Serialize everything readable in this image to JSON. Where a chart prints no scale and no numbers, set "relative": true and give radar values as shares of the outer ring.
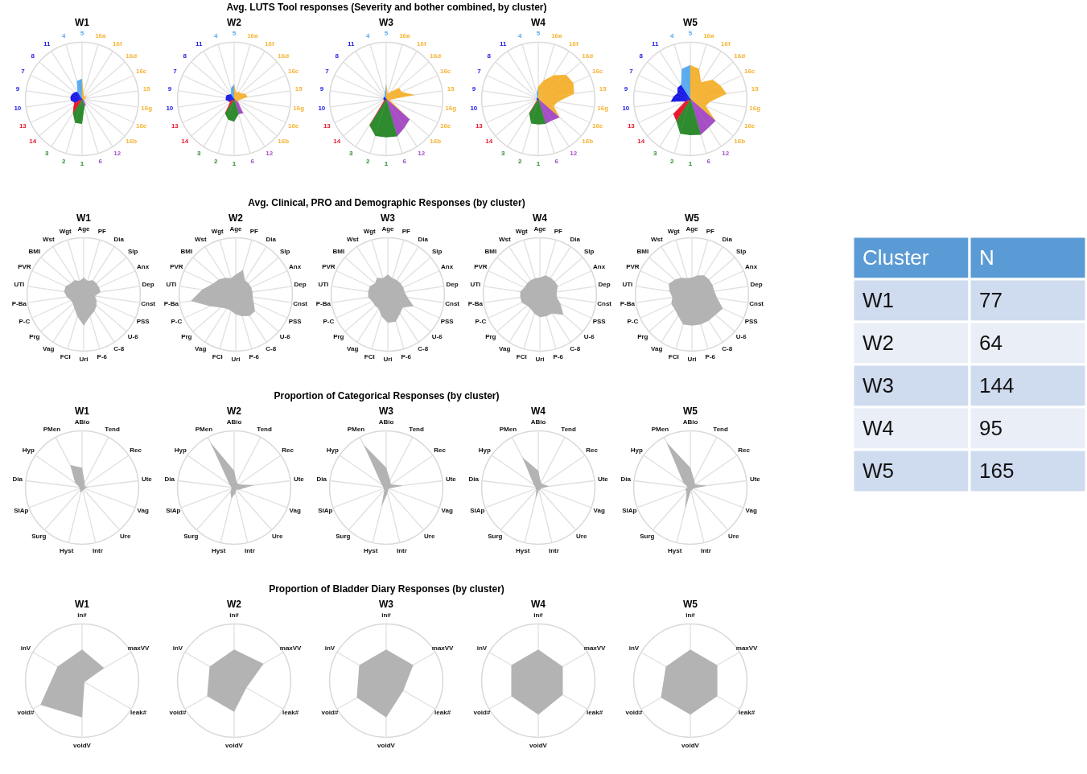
{
  "chart_data": [
    {
      "type": "radar",
      "title": "W1",
      "annotations": [
        "Avg. LUTS Tool responses (Severity and bother combined, by cluster)"
      ],
      "relative": true,
      "grid": true,
      "categories": [
        "5",
        "16a",
        "16f",
        "16d",
        "16c",
        "15",
        "16g",
        "16e",
        "16b",
        "12",
        "6",
        "1",
        "2",
        "3",
        "14",
        "13",
        "10",
        "9",
        "7",
        "8",
        "11",
        "4"
      ],
      "colors": [
        "#5aabf0",
        "#f5b335",
        "#f5b335",
        "#f5b335",
        "#f5b335",
        "#f5b335",
        "#f5b335",
        "#f5b335",
        "#f5b335",
        "#a64fc4",
        "#a64fc4",
        "#2e8b2e",
        "#2e8b2e",
        "#2e8b2e",
        "#e8192c",
        "#e8192c",
        "#1a1ae6",
        "#1a1ae6",
        "#1a1ae6",
        "#1a1ae6",
        "#1a1ae6",
        "#5aabf0"
      ],
      "series": [
        {
          "values": [
            0.36,
            0.1,
            0.06,
            0.06,
            0.1,
            0.05,
            0.04,
            0.04,
            0.05,
            0.12,
            0.15,
            0.44,
            0.44,
            0.3,
            0.2,
            0.15,
            0.2,
            0.21,
            0.2,
            0.18,
            0.15,
            0.33
          ]
        }
      ]
    },
    {
      "type": "radar",
      "title": "W2",
      "relative": true,
      "grid": true,
      "categories": [
        "5",
        "16a",
        "16f",
        "16d",
        "16c",
        "15",
        "16g",
        "16e",
        "16b",
        "12",
        "6",
        "1",
        "2",
        "3",
        "14",
        "13",
        "10",
        "9",
        "7",
        "8",
        "11",
        "4"
      ],
      "colors": [
        "#5aabf0",
        "#f5b335",
        "#f5b335",
        "#f5b335",
        "#f5b335",
        "#f5b335",
        "#f5b335",
        "#f5b335",
        "#f5b335",
        "#a64fc4",
        "#a64fc4",
        "#2e8b2e",
        "#2e8b2e",
        "#2e8b2e",
        "#e8192c",
        "#e8192c",
        "#1a1ae6",
        "#1a1ae6",
        "#1a1ae6",
        "#1a1ae6",
        "#1a1ae6",
        "#5aabf0"
      ],
      "series": [
        {
          "values": [
            0.26,
            0.12,
            0.15,
            0.15,
            0.22,
            0.24,
            0.1,
            0.08,
            0.1,
            0.3,
            0.28,
            0.4,
            0.38,
            0.3,
            0.1,
            0.1,
            0.15,
            0.15,
            0.15,
            0.12,
            0.1,
            0.2
          ]
        }
      ]
    },
    {
      "type": "radar",
      "title": "W3",
      "relative": true,
      "grid": true,
      "categories": [
        "5",
        "16a",
        "16f",
        "16d",
        "16c",
        "15",
        "16g",
        "16e",
        "16b",
        "12",
        "6",
        "1",
        "2",
        "3",
        "14",
        "13",
        "10",
        "9",
        "7",
        "8",
        "11",
        "4"
      ],
      "colors": [
        "#5aabf0",
        "#f5b335",
        "#f5b335",
        "#f5b335",
        "#f5b335",
        "#f5b335",
        "#f5b335",
        "#f5b335",
        "#f5b335",
        "#a64fc4",
        "#a64fc4",
        "#2e8b2e",
        "#2e8b2e",
        "#2e8b2e",
        "#e8192c",
        "#e8192c",
        "#1a1ae6",
        "#1a1ae6",
        "#1a1ae6",
        "#1a1ae6",
        "#1a1ae6",
        "#5aabf0"
      ],
      "series": [
        {
          "values": [
            0.27,
            0.1,
            0.15,
            0.3,
            0.3,
            0.51,
            0.08,
            0.08,
            0.55,
            0.6,
            0.69,
            0.68,
            0.68,
            0.55,
            0.05,
            0.05,
            0.05,
            0.05,
            0.05,
            0.05,
            0.05,
            0.1
          ]
        }
      ]
    },
    {
      "type": "radar",
      "title": "W4",
      "relative": true,
      "grid": true,
      "categories": [
        "5",
        "16a",
        "16f",
        "16d",
        "16c",
        "15",
        "16g",
        "16e",
        "16b",
        "12",
        "6",
        "1",
        "2",
        "3",
        "14",
        "13",
        "10",
        "9",
        "7",
        "8",
        "11",
        "4"
      ],
      "colors": [
        "#5aabf0",
        "#f5b335",
        "#f5b335",
        "#f5b335",
        "#f5b335",
        "#f5b335",
        "#f5b335",
        "#f5b335",
        "#f5b335",
        "#a64fc4",
        "#a64fc4",
        "#2e8b2e",
        "#2e8b2e",
        "#2e8b2e",
        "#e8192c",
        "#e8192c",
        "#1a1ae6",
        "#1a1ae6",
        "#1a1ae6",
        "#1a1ae6",
        "#1a1ae6",
        "#5aabf0"
      ],
      "series": [
        {
          "values": [
            0.22,
            0.34,
            0.5,
            0.65,
            0.68,
            0.64,
            0.35,
            0.3,
            0.5,
            0.45,
            0.46,
            0.45,
            0.45,
            0.3,
            0.03,
            0.03,
            0.03,
            0.03,
            0.03,
            0.03,
            0.03,
            0.1
          ]
        }
      ]
    },
    {
      "type": "radar",
      "title": "W5",
      "relative": true,
      "grid": true,
      "categories": [
        "5",
        "16a",
        "16f",
        "16d",
        "16c",
        "15",
        "16g",
        "16e",
        "16b",
        "12",
        "6",
        "1",
        "2",
        "3",
        "14",
        "13",
        "10",
        "9",
        "7",
        "8",
        "11",
        "4"
      ],
      "colors": [
        "#5aabf0",
        "#f5b335",
        "#f5b335",
        "#f5b335",
        "#f5b335",
        "#f5b335",
        "#f5b335",
        "#f5b335",
        "#f5b335",
        "#a64fc4",
        "#a64fc4",
        "#2e8b2e",
        "#2e8b2e",
        "#2e8b2e",
        "#e8192c",
        "#e8192c",
        "#1a1ae6",
        "#1a1ae6",
        "#1a1ae6",
        "#1a1ae6",
        "#1a1ae6",
        "#5aabf0"
      ],
      "series": [
        {
          "values": [
            0.6,
            0.55,
            0.35,
            0.52,
            0.58,
            0.65,
            0.35,
            0.3,
            0.59,
            0.6,
            0.66,
            0.64,
            0.64,
            0.46,
            0.4,
            0.1,
            0.35,
            0.3,
            0.25,
            0.3,
            0.3,
            0.55
          ]
        }
      ]
    },
    {
      "type": "radar",
      "title": "W1",
      "annotations": [
        "Avg. Clinical, PRO and Demographic Responses (by cluster)"
      ],
      "relative": true,
      "grid": true,
      "categories": [
        "Age",
        "PF",
        "Dia",
        "Slp",
        "Anx",
        "Dep",
        "Cnst",
        "PSS",
        "U-6",
        "C-8",
        "P-6",
        "Uri",
        "FCI",
        "Vag",
        "Prg",
        "P-C",
        "P-Ba",
        "UTI",
        "PVR",
        "BMI",
        "Wst",
        "Wgt"
      ],
      "series": [
        {
          "color": "#b3b3b3",
          "values": [
            0.3,
            0.25,
            0.3,
            0.3,
            0.3,
            0.3,
            0.2,
            0.25,
            0.3,
            0.35,
            0.4,
            0.55,
            0.4,
            0.3,
            0.25,
            0.25,
            0.3,
            0.35,
            0.35,
            0.3,
            0.3,
            0.25
          ]
        }
      ]
    },
    {
      "type": "radar",
      "title": "W2",
      "relative": true,
      "grid": true,
      "categories": [
        "Age",
        "PF",
        "Dia",
        "Slp",
        "Anx",
        "Dep",
        "Cnst",
        "PSS",
        "U-6",
        "C-8",
        "P-6",
        "Uri",
        "FCI",
        "Vag",
        "Prg",
        "P-C",
        "P-Ba",
        "UTI",
        "PVR",
        "BMI",
        "Wst",
        "Wgt"
      ],
      "series": [
        {
          "color": "#b3b3b3",
          "values": [
            0.35,
            0.45,
            0.3,
            0.3,
            0.3,
            0.3,
            0.3,
            0.35,
            0.45,
            0.45,
            0.4,
            0.35,
            0.3,
            0.3,
            0.35,
            0.5,
            0.8,
            0.6,
            0.45,
            0.4,
            0.35,
            0.3
          ]
        }
      ]
    },
    {
      "type": "radar",
      "title": "W3",
      "relative": true,
      "grid": true,
      "categories": [
        "Age",
        "PF",
        "Dia",
        "Slp",
        "Anx",
        "Dep",
        "Cnst",
        "PSS",
        "U-6",
        "C-8",
        "P-6",
        "Uri",
        "FCI",
        "Vag",
        "Prg",
        "P-C",
        "P-Ba",
        "UTI",
        "PVR",
        "BMI",
        "Wst",
        "Wgt"
      ],
      "series": [
        {
          "color": "#b3b3b3",
          "values": [
            0.35,
            0.3,
            0.3,
            0.3,
            0.3,
            0.3,
            0.35,
            0.5,
            0.35,
            0.4,
            0.5,
            0.5,
            0.4,
            0.3,
            0.3,
            0.3,
            0.35,
            0.35,
            0.35,
            0.3,
            0.35,
            0.3
          ]
        }
      ]
    },
    {
      "type": "radar",
      "title": "W4",
      "relative": true,
      "grid": true,
      "categories": [
        "Age",
        "PF",
        "Dia",
        "Slp",
        "Anx",
        "Dep",
        "Cnst",
        "PSS",
        "U-6",
        "C-8",
        "P-6",
        "Uri",
        "FCI",
        "Vag",
        "Prg",
        "P-C",
        "P-Ba",
        "UTI",
        "PVR",
        "BMI",
        "Wst",
        "Wgt"
      ],
      "series": [
        {
          "color": "#b3b3b3",
          "values": [
            0.3,
            0.35,
            0.35,
            0.35,
            0.35,
            0.3,
            0.3,
            0.4,
            0.55,
            0.4,
            0.4,
            0.4,
            0.35,
            0.3,
            0.3,
            0.35,
            0.35,
            0.35,
            0.3,
            0.3,
            0.3,
            0.3
          ]
        }
      ]
    },
    {
      "type": "radar",
      "title": "W5",
      "relative": true,
      "grid": true,
      "categories": [
        "Age",
        "PF",
        "Dia",
        "Slp",
        "Anx",
        "Dep",
        "Cnst",
        "PSS",
        "U-6",
        "C-8",
        "P-6",
        "Uri",
        "FCI",
        "Vag",
        "Prg",
        "P-C",
        "P-Ba",
        "UTI",
        "PVR",
        "BMI",
        "Wst",
        "Wgt"
      ],
      "series": [
        {
          "color": "#b3b3b3",
          "values": [
            0.3,
            0.35,
            0.4,
            0.4,
            0.4,
            0.4,
            0.45,
            0.6,
            0.55,
            0.55,
            0.55,
            0.55,
            0.55,
            0.45,
            0.4,
            0.4,
            0.35,
            0.4,
            0.45,
            0.4,
            0.35,
            0.3
          ]
        }
      ]
    },
    {
      "type": "radar",
      "title": "W1",
      "annotations": [
        "Proportion of Categorical Responses (by cluster)"
      ],
      "relative": true,
      "grid": true,
      "categories": [
        "ABio",
        "Tend",
        "Rec",
        "Ute",
        "Vag",
        "Ure",
        "Intr",
        "Hyst",
        "Surg",
        "SIAp",
        "Dia",
        "Hyp",
        "PMen"
      ],
      "series": [
        {
          "color": "#b3b3b3",
          "values": [
            0.35,
            0.1,
            0.05,
            0.1,
            0.05,
            0.05,
            0.05,
            0.1,
            0.05,
            0.05,
            0.05,
            0.15,
            0.45
          ]
        }
      ]
    },
    {
      "type": "radar",
      "title": "W2",
      "relative": true,
      "grid": true,
      "categories": [
        "ABio",
        "Tend",
        "Rec",
        "Ute",
        "Vag",
        "Ure",
        "Intr",
        "Hyst",
        "Surg",
        "SIAp",
        "Dia",
        "Hyp",
        "PMen"
      ],
      "series": [
        {
          "color": "#b3b3b3",
          "values": [
            0.3,
            0.1,
            0.1,
            0.35,
            0.1,
            0.05,
            0.1,
            0.2,
            0.1,
            0.05,
            0.05,
            0.1,
            0.9
          ]
        }
      ]
    },
    {
      "type": "radar",
      "title": "W3",
      "relative": true,
      "grid": true,
      "categories": [
        "ABio",
        "Tend",
        "Rec",
        "Ute",
        "Vag",
        "Ure",
        "Intr",
        "Hyst",
        "Surg",
        "SIAp",
        "Dia",
        "Hyp",
        "PMen"
      ],
      "series": [
        {
          "color": "#b3b3b3",
          "values": [
            0.35,
            0.15,
            0.1,
            0.3,
            0.05,
            0.05,
            0.1,
            0.35,
            0.05,
            0.05,
            0.05,
            0.1,
            0.85
          ]
        }
      ]
    },
    {
      "type": "radar",
      "title": "W4",
      "relative": true,
      "grid": true,
      "categories": [
        "ABio",
        "Tend",
        "Rec",
        "Ute",
        "Vag",
        "Ure",
        "Intr",
        "Hyst",
        "Surg",
        "SIAp",
        "Dia",
        "Hyp",
        "PMen"
      ],
      "series": [
        {
          "color": "#b3b3b3",
          "values": [
            0.3,
            0.1,
            0.1,
            0.2,
            0.05,
            0.05,
            0.05,
            0.2,
            0.05,
            0.05,
            0.05,
            0.1,
            0.6
          ]
        }
      ]
    },
    {
      "type": "radar",
      "title": "W5",
      "relative": true,
      "grid": true,
      "categories": [
        "ABio",
        "Tend",
        "Rec",
        "Ute",
        "Vag",
        "Ure",
        "Intr",
        "Hyst",
        "Surg",
        "SIAp",
        "Dia",
        "Hyp",
        "PMen"
      ],
      "series": [
        {
          "color": "#b3b3b3",
          "values": [
            0.35,
            0.15,
            0.1,
            0.3,
            0.05,
            0.05,
            0.05,
            0.4,
            0.1,
            0.1,
            0.05,
            0.15,
            0.9
          ]
        }
      ]
    },
    {
      "type": "radar",
      "title": "W1",
      "annotations": [
        "Proportion of Bladder Diary Responses (by cluster)"
      ],
      "relative": true,
      "grid": true,
      "categories": [
        "in#",
        "maxVV",
        "leak#",
        "voidV",
        "void#",
        "inV"
      ],
      "series": [
        {
          "color": "#b3b3b3",
          "values": [
            0.55,
            0.45,
            0.05,
            0.65,
            0.85,
            0.5
          ]
        }
      ]
    },
    {
      "type": "radar",
      "title": "W2",
      "relative": true,
      "grid": true,
      "categories": [
        "in#",
        "maxVV",
        "leak#",
        "voidV",
        "void#",
        "inV"
      ],
      "series": [
        {
          "color": "#b3b3b3",
          "values": [
            0.55,
            0.6,
            0.25,
            0.55,
            0.55,
            0.5
          ]
        }
      ]
    },
    {
      "type": "radar",
      "title": "W3",
      "relative": true,
      "grid": true,
      "categories": [
        "in#",
        "maxVV",
        "leak#",
        "voidV",
        "void#",
        "inV"
      ],
      "series": [
        {
          "color": "#b3b3b3",
          "values": [
            0.55,
            0.55,
            0.35,
            0.65,
            0.6,
            0.55
          ]
        }
      ]
    },
    {
      "type": "radar",
      "title": "W4",
      "relative": true,
      "grid": true,
      "categories": [
        "in#",
        "maxVV",
        "leak#",
        "voidV",
        "void#",
        "inV"
      ],
      "series": [
        {
          "color": "#b3b3b3",
          "values": [
            0.55,
            0.5,
            0.5,
            0.6,
            0.55,
            0.55
          ]
        }
      ]
    },
    {
      "type": "radar",
      "title": "W5",
      "relative": true,
      "grid": true,
      "categories": [
        "in#",
        "maxVV",
        "leak#",
        "voidV",
        "void#",
        "inV"
      ],
      "series": [
        {
          "color": "#b3b3b3",
          "values": [
            0.55,
            0.55,
            0.55,
            0.6,
            0.6,
            0.5
          ]
        }
      ]
    },
    {
      "type": "other",
      "xlabel": "Cluster",
      "ylabel": "N",
      "categories": [
        "W1",
        "W2",
        "W3",
        "W4",
        "W5"
      ],
      "values": [
        77,
        64,
        144,
        95,
        165
      ],
      "data_labels": true
    }
  ]
}
